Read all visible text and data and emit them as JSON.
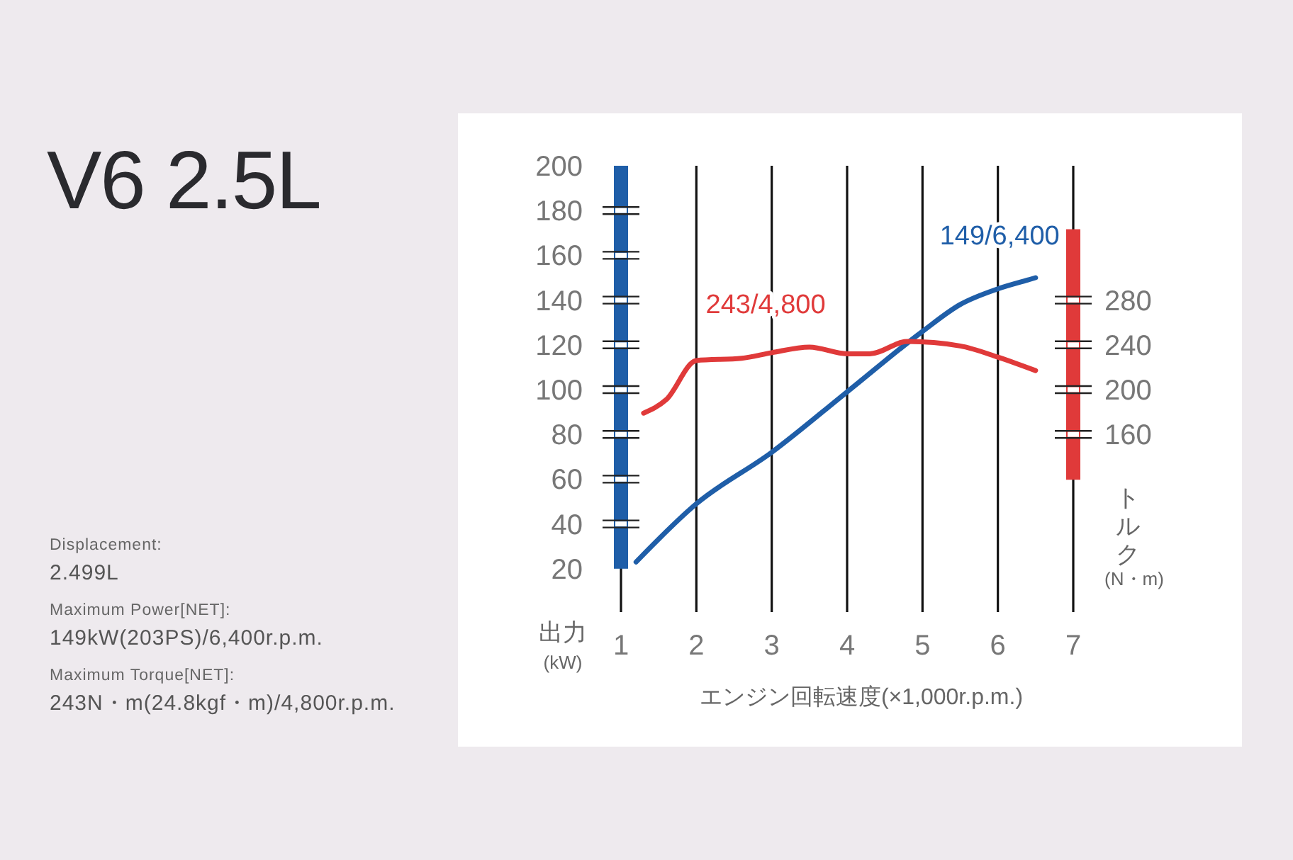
{
  "chart_data": {
    "type": "line",
    "title": "V6 2.5L",
    "xlabel": "エンジン回転速度(×1,000r.p.m.)",
    "ylabel": "出力\n(kW)",
    "y2label": "トルク\n(N・m)",
    "xlim": [
      1,
      7
    ],
    "xticks": [
      1,
      2,
      3,
      4,
      5,
      6,
      7
    ],
    "ylim": [
      0,
      200
    ],
    "yticks": [
      20,
      40,
      60,
      80,
      100,
      120,
      140,
      160,
      180,
      200
    ],
    "y2lim": [
      0,
      400
    ],
    "y2ticks": [
      160,
      200,
      240,
      280
    ],
    "grid": "x",
    "marker": "none",
    "line_style": "solid",
    "series": [
      {
        "color": "#1f5ea8",
        "x": [
          1.2,
          2,
          3,
          4,
          5,
          5.5,
          6,
          6.4,
          6.5
        ],
        "values": [
          23,
          49,
          72,
          99,
          126,
          138,
          145,
          149,
          150
        ]
      },
      {
        "color": "#e03a3a",
        "axis": "y2",
        "x": [
          1.3,
          1.6,
          2,
          2.6,
          3,
          3.5,
          4,
          4.3,
          4.8,
          5.5,
          6,
          6.5
        ],
        "values": [
          179,
          191,
          226,
          228,
          233,
          238,
          232,
          232,
          243,
          239,
          229,
          217
        ]
      }
    ],
    "annotations": [
      {
        "text": "149/6,400",
        "x": 6.4,
        "y": 149
      },
      "243/4,800",
      "Displacement:",
      "2.499L",
      "Maximum Power[NET]:",
      "149kW(203PS)/6,400r.p.m.",
      "Maximum Torque[NET]:",
      "243N・m(24.8kgf・m)/4,800r.p.m."
    ]
  }
}
